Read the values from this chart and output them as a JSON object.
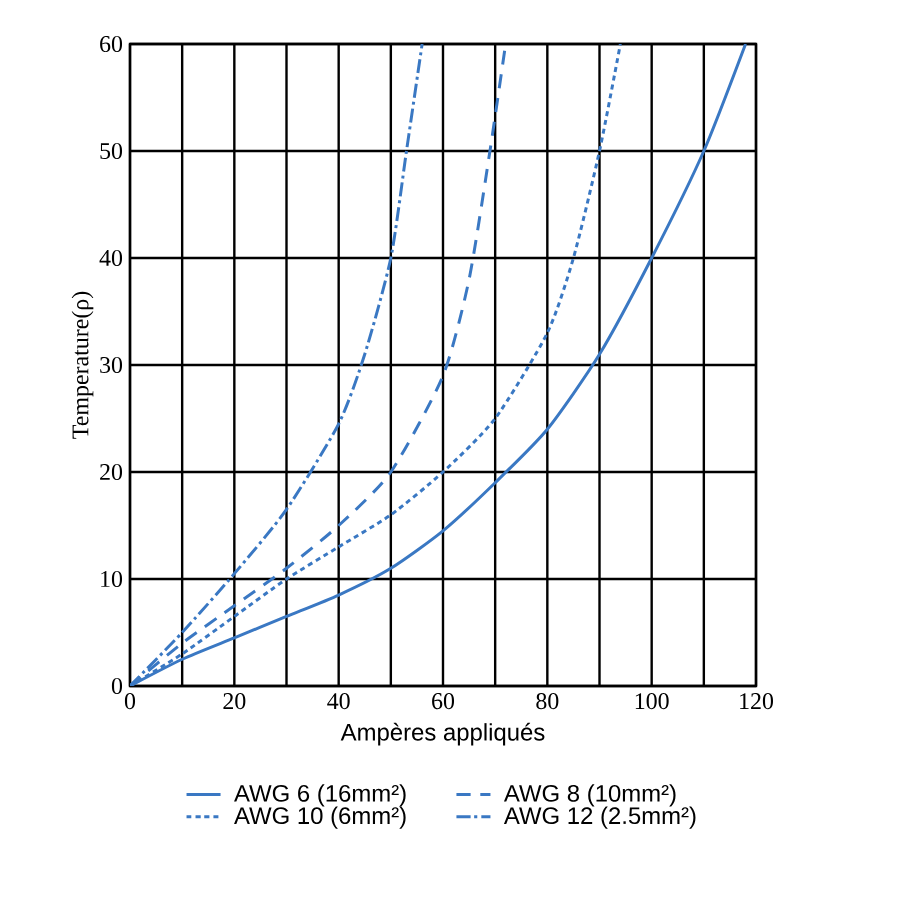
{
  "chart_data": {
    "type": "line",
    "xlabel": "Ampères appliqués",
    "ylabel": "Temperature(ρ)",
    "xlim": [
      0,
      120
    ],
    "ylim": [
      0,
      60
    ],
    "xticks": [
      0,
      {
        "value": 10,
        "label": null
      },
      20,
      {
        "value": 30,
        "label": null
      },
      40,
      {
        "value": 50,
        "label": null
      },
      60,
      {
        "value": 70,
        "label": null
      },
      80,
      {
        "value": 90,
        "label": null
      },
      100,
      {
        "value": 110,
        "label": null
      },
      120
    ],
    "yticks": [
      0,
      10,
      20,
      30,
      40,
      50,
      60
    ],
    "grid": true,
    "legend": "bottom",
    "marker": "none",
    "series": [
      {
        "name": "AWG 6 (16mm²)",
        "color": "#3a78c3",
        "line_style": "solid",
        "x": [
          0,
          10,
          20,
          30,
          40,
          50,
          60,
          70,
          80,
          90,
          100,
          110,
          118
        ],
        "values": [
          0,
          2.5,
          4.5,
          6.5,
          8.5,
          11,
          14.5,
          19,
          24,
          31,
          40,
          50,
          60
        ]
      },
      {
        "name": "AWG 8 (10mm²)",
        "color": "#3a78c3",
        "line_style": "dashed",
        "x": [
          0,
          10,
          20,
          30,
          40,
          50,
          60,
          65,
          69,
          72
        ],
        "values": [
          0,
          4,
          7.5,
          11,
          15,
          20,
          29,
          38,
          50,
          60
        ]
      },
      {
        "name": "AWG 10 (6mm²)",
        "color": "#3a78c3",
        "line_style": "dotted",
        "x": [
          0,
          10,
          20,
          30,
          40,
          50,
          60,
          70,
          80,
          85,
          90,
          94
        ],
        "values": [
          0,
          3,
          6.5,
          10,
          13,
          16,
          20,
          25,
          33,
          40,
          50,
          60
        ]
      },
      {
        "name": "AWG 12 (2.5mm²)",
        "color": "#3a78c3",
        "line_style": "dashdot",
        "x": [
          0,
          10,
          20,
          30,
          40,
          45,
          50,
          53,
          56
        ],
        "values": [
          0,
          5,
          10.5,
          16.5,
          24.5,
          31,
          40,
          50,
          60
        ]
      }
    ]
  }
}
